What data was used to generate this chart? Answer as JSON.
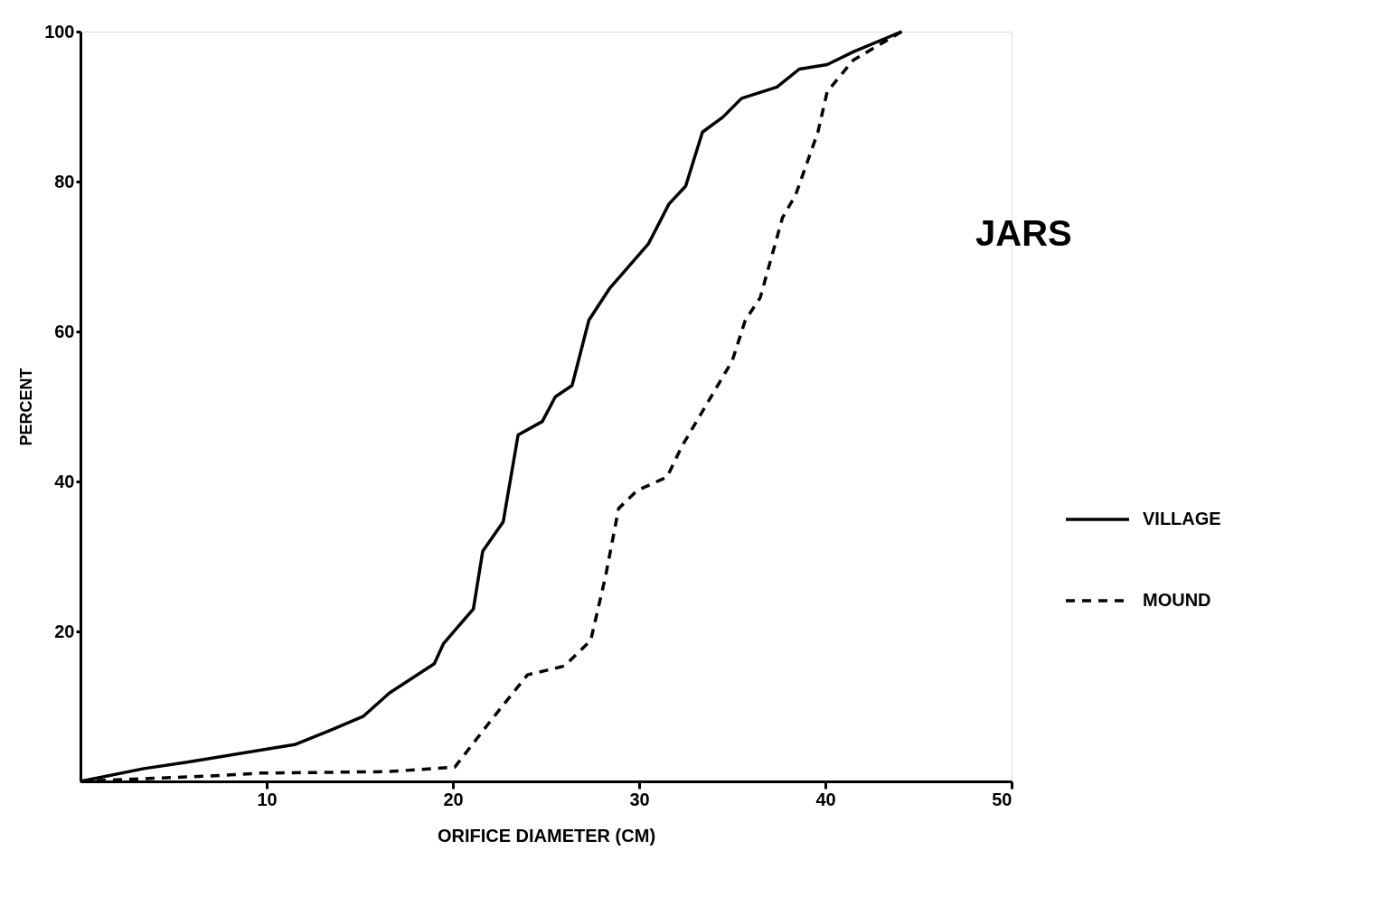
{
  "chart_data": {
    "type": "line",
    "title": "JARS",
    "xlabel": "ORIFICE DIAMETER (CM)",
    "ylabel": "PERCENT",
    "xlim": [
      0,
      50
    ],
    "ylim": [
      0,
      100
    ],
    "xticks": [
      10,
      20,
      30,
      40,
      50
    ],
    "yticks": [
      20,
      40,
      60,
      80,
      100
    ],
    "grid": false,
    "legend": "right",
    "marker": "none",
    "series": [
      {
        "name": "VILLAGE",
        "color": "#000000",
        "line_style": "solid",
        "x": [
          0,
          3.4,
          5.8,
          11.5,
          13.4,
          15.2,
          16.6,
          19,
          19.5,
          21.1,
          21.6,
          22.7,
          23.5,
          24.8,
          25.5,
          26.4,
          27.3,
          28.4,
          30.5,
          31.6,
          32.5,
          33.4,
          34.5,
          35.5,
          37.4,
          38.6,
          40.1,
          41.5,
          44.1
        ],
        "values": [
          0,
          1.7,
          2.6,
          4.9,
          6.8,
          8.7,
          11.8,
          15.7,
          18.4,
          23,
          30.7,
          34.6,
          46.2,
          48,
          51.3,
          52.8,
          61.5,
          65.7,
          71.7,
          77,
          79.4,
          86.6,
          88.6,
          91.1,
          92.6,
          95,
          95.6,
          97.3,
          100
        ]
      },
      {
        "name": "MOUND",
        "color": "#000000",
        "line_style": "dashed",
        "x": [
          0,
          6.8,
          9.7,
          16.5,
          20.1,
          22.1,
          24,
          26,
          27.4,
          28.2,
          28.9,
          29.9,
          31.5,
          32.3,
          35,
          35.7,
          36.5,
          37.7,
          38.4,
          39.6,
          40.1,
          41.5,
          44.1
        ],
        "values": [
          0,
          0.7,
          1.1,
          1.3,
          1.9,
          8.3,
          14.2,
          15.4,
          18.8,
          27.4,
          36.4,
          38.8,
          40.6,
          44.7,
          56.1,
          61.5,
          64.5,
          75.2,
          78.2,
          86.6,
          92,
          96.2,
          100
        ]
      }
    ]
  }
}
